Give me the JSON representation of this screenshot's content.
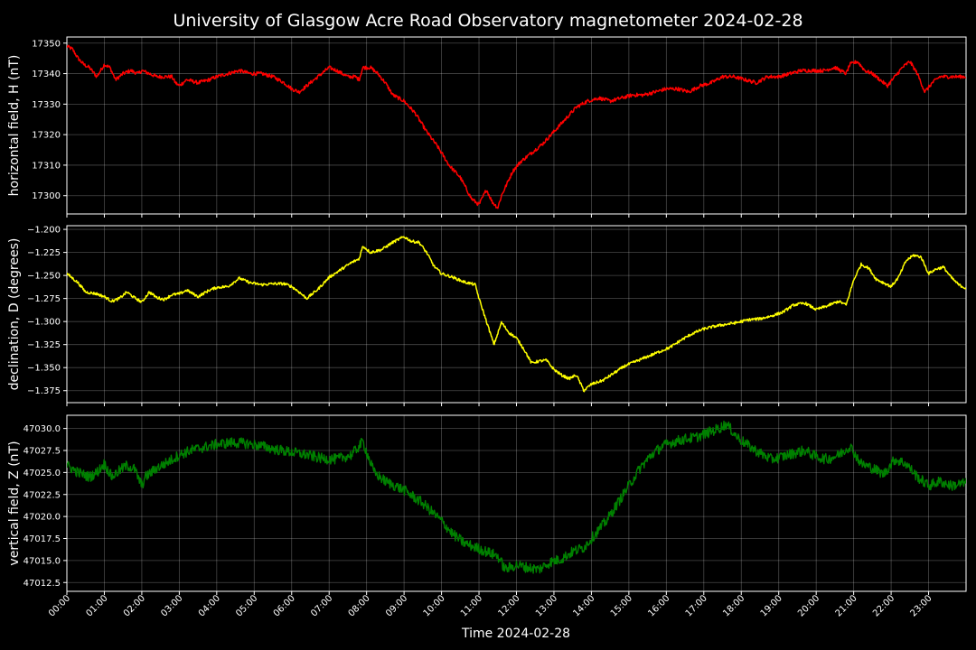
{
  "chart_data": {
    "title": "University of Glasgow Acre Road Observatory magnetometer 2024-02-28",
    "xlabel": "Time 2024-02-28",
    "x_ticks": [
      "00:00",
      "01:00",
      "02:00",
      "03:00",
      "04:00",
      "05:00",
      "06:00",
      "07:00",
      "08:00",
      "09:00",
      "10:00",
      "11:00",
      "12:00",
      "13:00",
      "14:00",
      "15:00",
      "16:00",
      "17:00",
      "18:00",
      "19:00",
      "20:00",
      "21:00",
      "22:00",
      "23:00"
    ],
    "x_range_hours": [
      0,
      24
    ],
    "grid": true,
    "panels": [
      {
        "type": "line",
        "ylabel": "horizontal field, H (nT)",
        "color": "#ff0000",
        "ylim": [
          17294,
          17352
        ],
        "y_ticks": [
          17300,
          17310,
          17320,
          17330,
          17340,
          17350
        ],
        "y_tick_labels": [
          "17300",
          "17310",
          "17320",
          "17330",
          "17340",
          "17350"
        ],
        "noise": 0.6,
        "x": [
          0,
          0.15,
          0.3,
          0.45,
          0.6,
          0.8,
          1.0,
          1.15,
          1.3,
          1.5,
          1.7,
          1.9,
          2.0,
          2.2,
          2.4,
          2.6,
          2.8,
          2.9,
          3.0,
          3.2,
          3.5,
          3.8,
          4.0,
          4.3,
          4.6,
          4.9,
          5.2,
          5.5,
          5.8,
          6.0,
          6.2,
          6.4,
          6.6,
          6.8,
          7.0,
          7.2,
          7.5,
          7.7,
          7.8,
          7.9,
          8.1,
          8.3,
          8.5,
          8.7,
          9.0,
          9.3,
          9.6,
          9.9,
          10.2,
          10.5,
          10.8,
          11.0,
          11.2,
          11.35,
          11.5,
          11.6,
          11.75,
          11.9,
          12.1,
          12.4,
          12.7,
          13.0,
          13.3,
          13.6,
          13.9,
          14.2,
          14.5,
          14.8,
          15.1,
          15.4,
          15.7,
          16.0,
          16.3,
          16.6,
          16.9,
          17.2,
          17.5,
          17.8,
          18.1,
          18.4,
          18.7,
          19.0,
          19.3,
          19.6,
          19.9,
          20.2,
          20.5,
          20.8,
          20.9,
          21.1,
          21.3,
          21.5,
          21.7,
          21.9,
          22.1,
          22.3,
          22.5,
          22.7,
          22.9,
          23.1,
          23.3,
          23.5,
          23.7,
          23.9,
          24.0
        ],
        "values": [
          17349,
          17348,
          17345,
          17343,
          17342,
          17339,
          17343,
          17342,
          17338,
          17340,
          17341,
          17340,
          17341,
          17340,
          17339,
          17339,
          17339,
          17337,
          17336,
          17338,
          17337,
          17338,
          17339,
          17340,
          17341,
          17340,
          17340,
          17339,
          17337,
          17335,
          17334,
          17336,
          17338,
          17340,
          17342,
          17341,
          17339,
          17339,
          17338,
          17342,
          17342,
          17340,
          17337,
          17333,
          17331,
          17327,
          17321,
          17316,
          17310,
          17306,
          17299,
          17297,
          17302,
          17298,
          17296,
          17300,
          17304,
          17308,
          17311,
          17314,
          17317,
          17321,
          17325,
          17329,
          17331,
          17332,
          17331,
          17332,
          17333,
          17333,
          17334,
          17335,
          17335,
          17334,
          17336,
          17337,
          17339,
          17339,
          17338,
          17337,
          17339,
          17339,
          17340,
          17341,
          17341,
          17341,
          17342,
          17340,
          17343,
          17344,
          17341,
          17340,
          17338,
          17336,
          17339,
          17342,
          17344,
          17340,
          17334,
          17337,
          17339,
          17339,
          17339,
          17339,
          17339
        ]
      },
      {
        "type": "line",
        "ylabel": "declination, D (degrees)",
        "color": "#ffff00",
        "ylim": [
          -1.388,
          -1.196
        ],
        "y_ticks": [
          -1.375,
          -1.35,
          -1.325,
          -1.3,
          -1.275,
          -1.25,
          -1.225,
          -1.2
        ],
        "y_tick_labels": [
          "−1.375",
          "−1.350",
          "−1.325",
          "−1.300",
          "−1.275",
          "−1.250",
          "−1.225",
          "−1.200"
        ],
        "noise": 0.0015,
        "x": [
          0,
          0.3,
          0.5,
          0.8,
          1.0,
          1.2,
          1.4,
          1.6,
          1.8,
          2.0,
          2.2,
          2.4,
          2.6,
          2.8,
          3.0,
          3.2,
          3.5,
          3.8,
          4.0,
          4.3,
          4.6,
          4.9,
          5.2,
          5.5,
          5.8,
          6.0,
          6.2,
          6.4,
          6.7,
          7.0,
          7.3,
          7.6,
          7.8,
          7.9,
          8.1,
          8.4,
          8.7,
          9.0,
          9.2,
          9.4,
          9.6,
          9.8,
          10.0,
          10.3,
          10.6,
          10.9,
          11.0,
          11.2,
          11.4,
          11.6,
          11.8,
          12.0,
          12.2,
          12.4,
          12.6,
          12.8,
          13.0,
          13.2,
          13.4,
          13.6,
          13.8,
          14.0,
          14.3,
          14.6,
          14.9,
          15.2,
          15.5,
          15.8,
          16.1,
          16.4,
          16.7,
          17.0,
          17.3,
          17.6,
          17.9,
          18.2,
          18.5,
          18.8,
          19.1,
          19.4,
          19.7,
          20.0,
          20.3,
          20.6,
          20.8,
          21.0,
          21.2,
          21.4,
          21.6,
          21.8,
          22.0,
          22.2,
          22.4,
          22.6,
          22.8,
          23.0,
          23.2,
          23.4,
          23.6,
          23.8,
          24.0
        ],
        "values": [
          -1.248,
          -1.258,
          -1.268,
          -1.27,
          -1.273,
          -1.278,
          -1.275,
          -1.268,
          -1.274,
          -1.279,
          -1.268,
          -1.274,
          -1.276,
          -1.271,
          -1.27,
          -1.266,
          -1.273,
          -1.266,
          -1.263,
          -1.262,
          -1.253,
          -1.258,
          -1.26,
          -1.259,
          -1.259,
          -1.262,
          -1.268,
          -1.275,
          -1.265,
          -1.252,
          -1.244,
          -1.236,
          -1.232,
          -1.218,
          -1.225,
          -1.222,
          -1.214,
          -1.208,
          -1.213,
          -1.214,
          -1.225,
          -1.24,
          -1.248,
          -1.252,
          -1.257,
          -1.26,
          -1.275,
          -1.3,
          -1.325,
          -1.301,
          -1.312,
          -1.318,
          -1.33,
          -1.345,
          -1.343,
          -1.342,
          -1.352,
          -1.358,
          -1.362,
          -1.358,
          -1.375,
          -1.368,
          -1.364,
          -1.356,
          -1.348,
          -1.343,
          -1.338,
          -1.333,
          -1.328,
          -1.32,
          -1.313,
          -1.308,
          -1.305,
          -1.303,
          -1.301,
          -1.298,
          -1.297,
          -1.294,
          -1.29,
          -1.282,
          -1.28,
          -1.287,
          -1.283,
          -1.278,
          -1.282,
          -1.255,
          -1.238,
          -1.242,
          -1.254,
          -1.258,
          -1.262,
          -1.252,
          -1.234,
          -1.228,
          -1.23,
          -1.248,
          -1.243,
          -1.241,
          -1.252,
          -1.26,
          -1.264
        ]
      },
      {
        "type": "line",
        "ylabel": "vertical field, Z (nT)",
        "color": "#008000",
        "ylim": [
          47011.5,
          47031.5
        ],
        "y_ticks": [
          47012.5,
          47015.0,
          47017.5,
          47020.0,
          47022.5,
          47025.0,
          47027.5,
          47030.0
        ],
        "y_tick_labels": [
          "47012.5",
          "47015.0",
          "47017.5",
          "47020.0",
          "47022.5",
          "47025.0",
          "47027.5",
          "47030.0"
        ],
        "noise": 0.6,
        "x": [
          0,
          0.3,
          0.6,
          0.8,
          1.0,
          1.2,
          1.4,
          1.6,
          1.8,
          2.0,
          2.1,
          2.4,
          2.7,
          3.0,
          3.3,
          3.6,
          4.0,
          4.4,
          4.8,
          5.2,
          5.6,
          6.0,
          6.4,
          6.8,
          7.2,
          7.6,
          7.9,
          8.2,
          8.5,
          9.0,
          9.5,
          10.0,
          10.3,
          10.6,
          10.9,
          11.2,
          11.5,
          11.7,
          12.0,
          12.3,
          12.6,
          12.9,
          13.2,
          13.5,
          13.8,
          14.1,
          14.4,
          14.7,
          15.0,
          15.3,
          15.6,
          15.9,
          16.2,
          16.5,
          16.8,
          17.1,
          17.4,
          17.6,
          17.9,
          18.2,
          18.5,
          18.8,
          19.1,
          19.4,
          19.7,
          20.0,
          20.3,
          20.6,
          20.9,
          21.2,
          21.5,
          21.8,
          22.1,
          22.4,
          22.7,
          23.0,
          23.3,
          23.6,
          24.0
        ],
        "values": [
          47025.8,
          47025.0,
          47024.5,
          47025.0,
          47026.0,
          47024.5,
          47025.2,
          47025.8,
          47025.4,
          47023.5,
          47024.5,
          47025.5,
          47026.2,
          47027.0,
          47027.5,
          47027.8,
          47028.2,
          47028.4,
          47028.3,
          47028.0,
          47027.6,
          47027.3,
          47027.0,
          47026.6,
          47026.5,
          47027.0,
          47028.5,
          47025.0,
          47024.0,
          47023.0,
          47021.5,
          47019.5,
          47018.0,
          47017.0,
          47016.5,
          47016.0,
          47015.5,
          47014.0,
          47014.5,
          47014.2,
          47014.0,
          47014.8,
          47015.2,
          47016.0,
          47016.5,
          47018.0,
          47019.5,
          47021.5,
          47023.5,
          47025.5,
          47027.0,
          47028.0,
          47028.5,
          47028.8,
          47029.0,
          47029.5,
          47030.0,
          47030.5,
          47029.0,
          47028.0,
          47027.2,
          47026.5,
          47026.8,
          47027.2,
          47027.5,
          47026.8,
          47026.5,
          47027.0,
          47028.0,
          47026.0,
          47025.5,
          47024.8,
          47026.5,
          47026.0,
          47024.5,
          47023.5,
          47024.0,
          47023.5,
          47023.8
        ]
      }
    ]
  }
}
